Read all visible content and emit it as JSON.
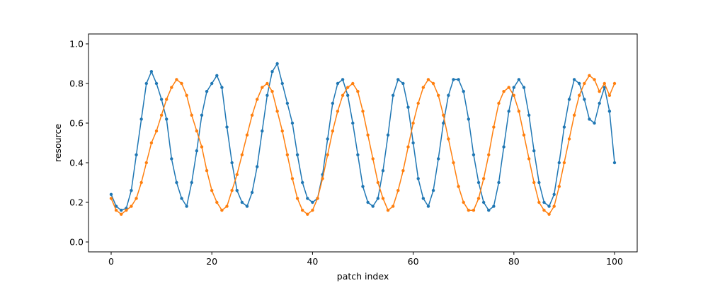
{
  "chart_data": {
    "type": "line",
    "title": "",
    "xlabel": "patch index",
    "ylabel": "resource",
    "xlim": [
      -4.5,
      104.5
    ],
    "ylim": [
      -0.05,
      1.05
    ],
    "x_ticks": [
      0,
      20,
      40,
      60,
      80,
      100
    ],
    "y_ticks": [
      0.0,
      0.2,
      0.4,
      0.6,
      0.8,
      1.0
    ],
    "x_tick_labels": [
      "0",
      "20",
      "40",
      "60",
      "80",
      "100"
    ],
    "y_tick_labels": [
      "0.0",
      "0.2",
      "0.4",
      "0.6",
      "0.8",
      "1.0"
    ],
    "grid": false,
    "legend": "none",
    "markers": true,
    "x": [
      0,
      1,
      2,
      3,
      4,
      5,
      6,
      7,
      8,
      9,
      10,
      11,
      12,
      13,
      14,
      15,
      16,
      17,
      18,
      19,
      20,
      21,
      22,
      23,
      24,
      25,
      26,
      27,
      28,
      29,
      30,
      31,
      32,
      33,
      34,
      35,
      36,
      37,
      38,
      39,
      40,
      41,
      42,
      43,
      44,
      45,
      46,
      47,
      48,
      49,
      50,
      51,
      52,
      53,
      54,
      55,
      56,
      57,
      58,
      59,
      60,
      61,
      62,
      63,
      64,
      65,
      66,
      67,
      68,
      69,
      70,
      71,
      72,
      73,
      74,
      75,
      76,
      77,
      78,
      79,
      80,
      81,
      82,
      83,
      84,
      85,
      86,
      87,
      88,
      89,
      90,
      91,
      92,
      93,
      94,
      95,
      96,
      97,
      98,
      99,
      100
    ],
    "series": [
      {
        "color": "#1f77b4",
        "values": [
          0.24,
          0.18,
          0.16,
          0.17,
          0.26,
          0.44,
          0.62,
          0.8,
          0.86,
          0.8,
          0.72,
          0.62,
          0.42,
          0.3,
          0.22,
          0.18,
          0.3,
          0.46,
          0.64,
          0.76,
          0.8,
          0.84,
          0.78,
          0.58,
          0.4,
          0.26,
          0.2,
          0.18,
          0.25,
          0.38,
          0.56,
          0.74,
          0.86,
          0.9,
          0.8,
          0.7,
          0.6,
          0.44,
          0.3,
          0.22,
          0.2,
          0.22,
          0.34,
          0.52,
          0.7,
          0.8,
          0.82,
          0.74,
          0.6,
          0.44,
          0.28,
          0.2,
          0.18,
          0.22,
          0.36,
          0.54,
          0.74,
          0.82,
          0.8,
          0.68,
          0.5,
          0.32,
          0.22,
          0.18,
          0.26,
          0.42,
          0.6,
          0.74,
          0.82,
          0.82,
          0.76,
          0.62,
          0.44,
          0.3,
          0.2,
          0.16,
          0.18,
          0.3,
          0.48,
          0.66,
          0.78,
          0.82,
          0.78,
          0.64,
          0.46,
          0.3,
          0.2,
          0.18,
          0.24,
          0.4,
          0.58,
          0.72,
          0.82,
          0.8,
          0.72,
          0.62,
          0.6,
          0.7,
          0.78,
          0.66,
          0.4
        ]
      },
      {
        "color": "#ff7f0e",
        "values": [
          0.22,
          0.16,
          0.14,
          0.16,
          0.18,
          0.22,
          0.3,
          0.4,
          0.5,
          0.56,
          0.64,
          0.72,
          0.78,
          0.82,
          0.8,
          0.74,
          0.64,
          0.56,
          0.48,
          0.36,
          0.26,
          0.2,
          0.16,
          0.18,
          0.26,
          0.34,
          0.44,
          0.54,
          0.64,
          0.72,
          0.78,
          0.8,
          0.76,
          0.66,
          0.56,
          0.44,
          0.32,
          0.22,
          0.16,
          0.14,
          0.16,
          0.22,
          0.32,
          0.44,
          0.56,
          0.66,
          0.74,
          0.78,
          0.8,
          0.76,
          0.66,
          0.54,
          0.42,
          0.3,
          0.22,
          0.16,
          0.18,
          0.26,
          0.36,
          0.48,
          0.6,
          0.7,
          0.78,
          0.82,
          0.8,
          0.74,
          0.64,
          0.52,
          0.4,
          0.28,
          0.2,
          0.16,
          0.16,
          0.22,
          0.32,
          0.44,
          0.58,
          0.7,
          0.76,
          0.78,
          0.74,
          0.66,
          0.54,
          0.42,
          0.3,
          0.2,
          0.16,
          0.14,
          0.18,
          0.28,
          0.4,
          0.52,
          0.64,
          0.74,
          0.8,
          0.84,
          0.82,
          0.76,
          0.8,
          0.74,
          0.8
        ]
      }
    ]
  }
}
